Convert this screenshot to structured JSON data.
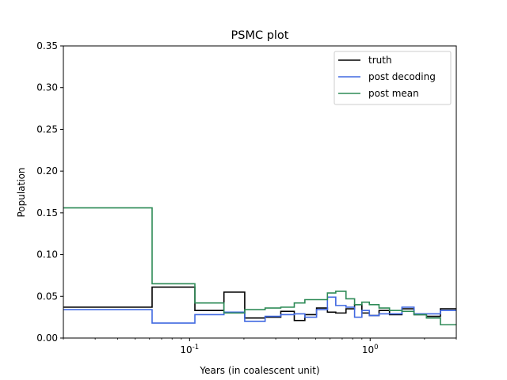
{
  "chart_data": {
    "type": "line",
    "step": true,
    "title": "PSMC plot",
    "xlabel": "Years (in coalescent unit)",
    "ylabel": "Population",
    "xscale": "log",
    "xlim": [
      0.02,
      3.0
    ],
    "ylim": [
      0,
      0.35
    ],
    "y_ticks": [
      0.0,
      0.05,
      0.1,
      0.15,
      0.2,
      0.25,
      0.3,
      0.35
    ],
    "y_tick_labels": [
      "0.00",
      "0.05",
      "0.10",
      "0.15",
      "0.20",
      "0.25",
      "0.30",
      "0.35"
    ],
    "x_major_ticks": [
      0.1,
      1
    ],
    "x_major_tick_labels": [
      "10^-1",
      "10^0"
    ],
    "legend_position": "top-right",
    "series": [
      {
        "name": "truth",
        "color": "#000000",
        "x": [
          0.02,
          0.062,
          0.107,
          0.155,
          0.202,
          0.262,
          0.32,
          0.38,
          0.435,
          0.505,
          0.58,
          0.645,
          0.735,
          0.82,
          0.9,
          0.99,
          1.12,
          1.28,
          1.5,
          1.75,
          2.05,
          2.45,
          3.0
        ],
        "y": [
          0.037,
          0.061,
          0.033,
          0.055,
          0.024,
          0.025,
          0.032,
          0.021,
          0.028,
          0.036,
          0.031,
          0.03,
          0.035,
          0.04,
          0.03,
          0.027,
          0.033,
          0.028,
          0.035,
          0.028,
          0.026,
          0.035,
          0.034
        ]
      },
      {
        "name": "post decoding",
        "color": "#4169e1",
        "x": [
          0.02,
          0.062,
          0.107,
          0.155,
          0.202,
          0.262,
          0.32,
          0.38,
          0.435,
          0.505,
          0.58,
          0.645,
          0.735,
          0.82,
          0.9,
          0.99,
          1.12,
          1.28,
          1.5,
          1.75,
          2.05,
          2.45,
          3.0
        ],
        "y": [
          0.034,
          0.018,
          0.028,
          0.031,
          0.02,
          0.026,
          0.028,
          0.029,
          0.025,
          0.034,
          0.049,
          0.039,
          0.037,
          0.025,
          0.033,
          0.027,
          0.029,
          0.029,
          0.037,
          0.029,
          0.029,
          0.033,
          0.02
        ]
      },
      {
        "name": "post mean",
        "color": "#2e8b57",
        "x": [
          0.02,
          0.062,
          0.107,
          0.155,
          0.202,
          0.262,
          0.32,
          0.38,
          0.435,
          0.505,
          0.58,
          0.645,
          0.735,
          0.82,
          0.9,
          0.99,
          1.12,
          1.28,
          1.5,
          1.75,
          2.05,
          2.45,
          3.0
        ],
        "y": [
          0.156,
          0.065,
          0.042,
          0.03,
          0.034,
          0.036,
          0.037,
          0.042,
          0.046,
          0.046,
          0.054,
          0.056,
          0.047,
          0.04,
          0.043,
          0.04,
          0.036,
          0.033,
          0.032,
          0.028,
          0.024,
          0.016,
          0.003
        ]
      }
    ]
  }
}
